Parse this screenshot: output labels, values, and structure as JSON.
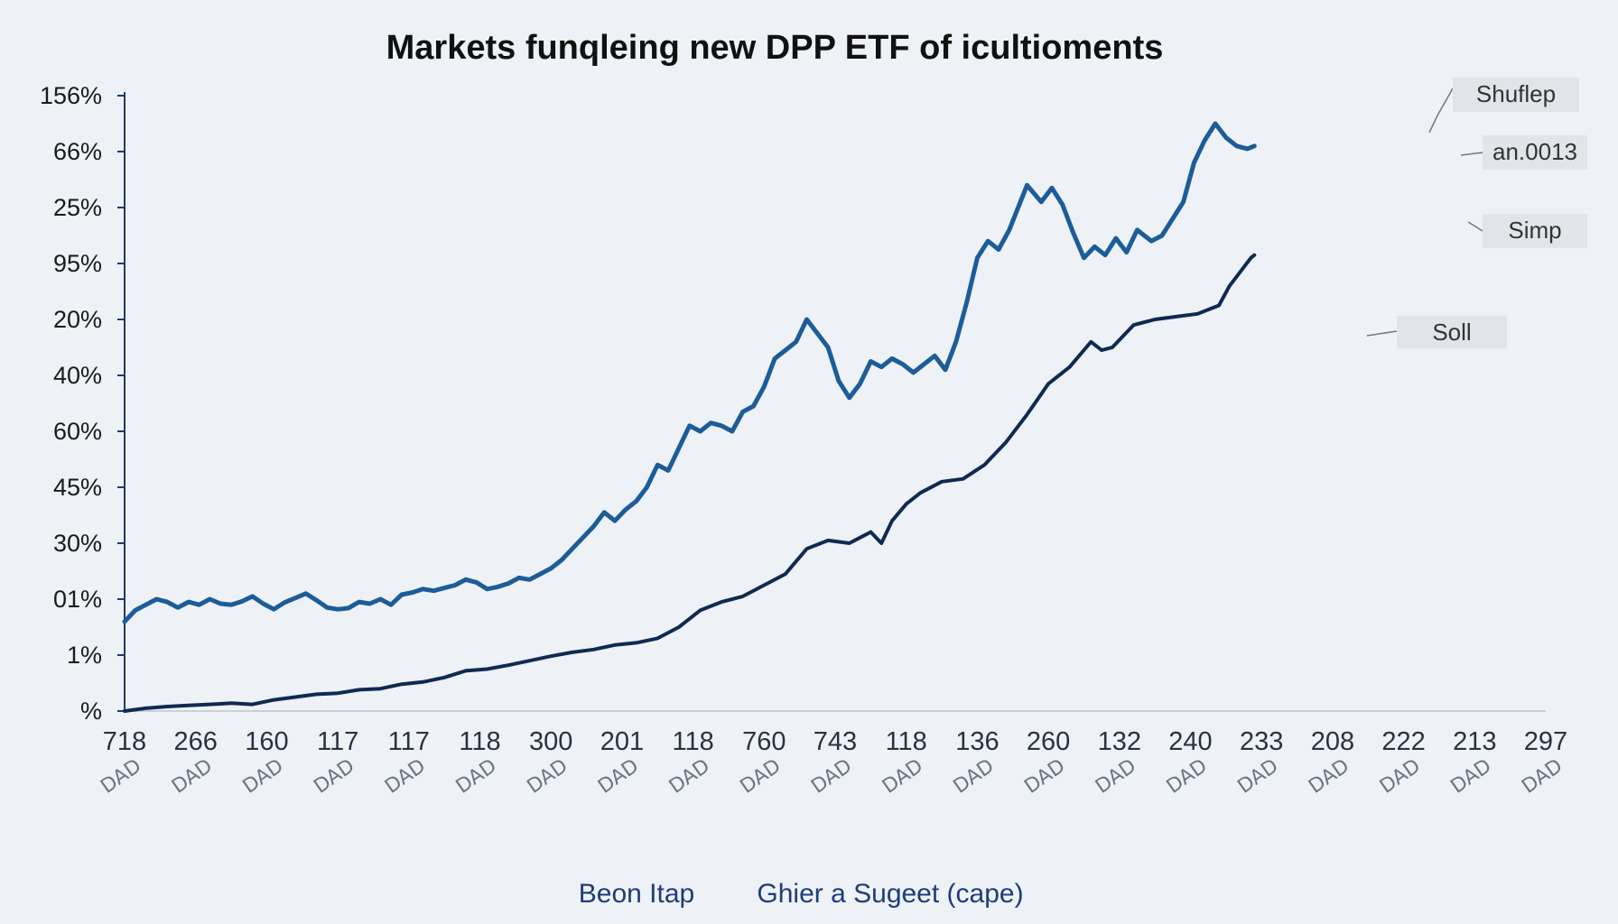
{
  "chart_data": {
    "type": "line",
    "title": "Markets funqleing new DPP ETF of icultioments",
    "xlabel": "",
    "ylabel": "",
    "y_tick_labels": [
      "%",
      "1%",
      "01%",
      "30%",
      "45%",
      "60%",
      "40%",
      "20%",
      "95%",
      "25%",
      "66%",
      "156%"
    ],
    "x_tick_labels": [
      "718",
      "266",
      "160",
      "117",
      "117",
      "118",
      "300",
      "201",
      "118",
      "760",
      "743",
      "118",
      "136",
      "260",
      "132",
      "240",
      "233",
      "208",
      "222",
      "213",
      "297"
    ],
    "x_sub_labels": [
      "DAD",
      "DAD",
      "DAD",
      "DAD",
      "DAD",
      "DAD",
      "DAD",
      "DAD",
      "DAD",
      "DAD",
      "DAD",
      "DAD",
      "DAD",
      "DAD",
      "DAD",
      "DAD",
      "DAD",
      "DAD",
      "DAD",
      "DAD",
      "DAD"
    ],
    "ylim": [
      0,
      11
    ],
    "grid": false,
    "legend_position": "bottom",
    "legend": [
      "Beon Itap",
      "Ghier a Sugeet (cape)"
    ],
    "annotations": [
      "Shuflep",
      "an.0013",
      "Simp",
      "Soll"
    ],
    "colors": {
      "upper": "#1c5c99",
      "lower": "#0f2a52",
      "axis": "#1b3b6b",
      "annot_box": "#e1e5ea"
    },
    "series": [
      {
        "color": "#1c5c99",
        "values": [
          [
            0.0,
            1.6
          ],
          [
            0.15,
            1.8
          ],
          [
            0.3,
            1.9
          ],
          [
            0.45,
            2.0
          ],
          [
            0.6,
            1.95
          ],
          [
            0.75,
            1.85
          ],
          [
            0.9,
            1.95
          ],
          [
            1.05,
            1.9
          ],
          [
            1.2,
            2.0
          ],
          [
            1.35,
            1.92
          ],
          [
            1.5,
            1.9
          ],
          [
            1.65,
            1.96
          ],
          [
            1.8,
            2.05
          ],
          [
            1.95,
            1.92
          ],
          [
            2.1,
            1.82
          ],
          [
            2.25,
            1.94
          ],
          [
            2.4,
            2.02
          ],
          [
            2.55,
            2.1
          ],
          [
            2.7,
            1.98
          ],
          [
            2.85,
            1.85
          ],
          [
            3.0,
            1.82
          ],
          [
            3.15,
            1.84
          ],
          [
            3.3,
            1.95
          ],
          [
            3.45,
            1.92
          ],
          [
            3.6,
            2.0
          ],
          [
            3.75,
            1.9
          ],
          [
            3.9,
            2.08
          ],
          [
            4.05,
            2.12
          ],
          [
            4.2,
            2.18
          ],
          [
            4.35,
            2.15
          ],
          [
            4.5,
            2.2
          ],
          [
            4.65,
            2.25
          ],
          [
            4.8,
            2.35
          ],
          [
            4.95,
            2.3
          ],
          [
            5.1,
            2.18
          ],
          [
            5.25,
            2.22
          ],
          [
            5.4,
            2.28
          ],
          [
            5.55,
            2.38
          ],
          [
            5.7,
            2.35
          ],
          [
            5.85,
            2.45
          ],
          [
            6.0,
            2.55
          ],
          [
            6.15,
            2.7
          ],
          [
            6.3,
            2.9
          ],
          [
            6.45,
            3.1
          ],
          [
            6.6,
            3.3
          ],
          [
            6.75,
            3.55
          ],
          [
            6.9,
            3.4
          ],
          [
            7.05,
            3.6
          ],
          [
            7.2,
            3.75
          ],
          [
            7.35,
            4.0
          ],
          [
            7.5,
            4.4
          ],
          [
            7.65,
            4.3
          ],
          [
            7.8,
            4.7
          ],
          [
            7.95,
            5.1
          ],
          [
            8.1,
            5.0
          ],
          [
            8.25,
            5.15
          ],
          [
            8.4,
            5.1
          ],
          [
            8.55,
            5.0
          ],
          [
            8.7,
            5.35
          ],
          [
            8.85,
            5.45
          ],
          [
            9.0,
            5.8
          ],
          [
            9.15,
            6.3
          ],
          [
            9.3,
            6.45
          ],
          [
            9.45,
            6.6
          ],
          [
            9.6,
            7.0
          ],
          [
            9.75,
            6.75
          ],
          [
            9.9,
            6.5
          ],
          [
            10.05,
            5.9
          ],
          [
            10.2,
            5.6
          ],
          [
            10.35,
            5.85
          ],
          [
            10.5,
            6.25
          ],
          [
            10.65,
            6.15
          ],
          [
            10.8,
            6.3
          ],
          [
            10.95,
            6.2
          ],
          [
            11.1,
            6.05
          ],
          [
            11.25,
            6.2
          ],
          [
            11.4,
            6.35
          ],
          [
            11.55,
            6.1
          ],
          [
            11.7,
            6.6
          ],
          [
            11.85,
            7.3
          ],
          [
            12.0,
            8.1
          ],
          [
            12.15,
            8.4
          ],
          [
            12.3,
            8.25
          ],
          [
            12.45,
            8.6
          ],
          [
            12.7,
            9.4
          ],
          [
            12.9,
            9.1
          ],
          [
            13.05,
            9.35
          ],
          [
            13.2,
            9.05
          ],
          [
            13.35,
            8.55
          ],
          [
            13.5,
            8.1
          ],
          [
            13.65,
            8.3
          ],
          [
            13.8,
            8.15
          ],
          [
            13.95,
            8.45
          ],
          [
            14.1,
            8.2
          ],
          [
            14.25,
            8.6
          ],
          [
            14.45,
            8.4
          ],
          [
            14.6,
            8.5
          ],
          [
            14.75,
            8.8
          ],
          [
            14.9,
            9.1
          ],
          [
            15.05,
            9.8
          ],
          [
            15.2,
            10.2
          ],
          [
            15.35,
            10.5
          ],
          [
            15.5,
            10.25
          ],
          [
            15.65,
            10.1
          ],
          [
            15.8,
            10.05
          ],
          [
            15.9,
            10.1
          ]
        ]
      },
      {
        "color": "#0f2a52",
        "values": [
          [
            0.0,
            0.0
          ],
          [
            0.3,
            0.05
          ],
          [
            0.6,
            0.08
          ],
          [
            0.9,
            0.1
          ],
          [
            1.2,
            0.12
          ],
          [
            1.5,
            0.14
          ],
          [
            1.8,
            0.12
          ],
          [
            2.1,
            0.2
          ],
          [
            2.4,
            0.25
          ],
          [
            2.7,
            0.3
          ],
          [
            3.0,
            0.32
          ],
          [
            3.3,
            0.38
          ],
          [
            3.6,
            0.4
          ],
          [
            3.9,
            0.48
          ],
          [
            4.2,
            0.52
          ],
          [
            4.5,
            0.6
          ],
          [
            4.8,
            0.72
          ],
          [
            5.1,
            0.75
          ],
          [
            5.4,
            0.82
          ],
          [
            5.7,
            0.9
          ],
          [
            6.0,
            0.98
          ],
          [
            6.3,
            1.05
          ],
          [
            6.6,
            1.1
          ],
          [
            6.9,
            1.18
          ],
          [
            7.2,
            1.22
          ],
          [
            7.5,
            1.3
          ],
          [
            7.8,
            1.5
          ],
          [
            8.1,
            1.8
          ],
          [
            8.4,
            1.95
          ],
          [
            8.7,
            2.05
          ],
          [
            9.0,
            2.25
          ],
          [
            9.3,
            2.45
          ],
          [
            9.6,
            2.9
          ],
          [
            9.9,
            3.05
          ],
          [
            10.2,
            3.0
          ],
          [
            10.35,
            3.1
          ],
          [
            10.5,
            3.2
          ],
          [
            10.65,
            3.0
          ],
          [
            10.8,
            3.4
          ],
          [
            11.0,
            3.7
          ],
          [
            11.2,
            3.9
          ],
          [
            11.5,
            4.1
          ],
          [
            11.8,
            4.15
          ],
          [
            12.1,
            4.4
          ],
          [
            12.4,
            4.8
          ],
          [
            12.7,
            5.3
          ],
          [
            13.0,
            5.85
          ],
          [
            13.3,
            6.15
          ],
          [
            13.6,
            6.6
          ],
          [
            13.75,
            6.45
          ],
          [
            13.9,
            6.5
          ],
          [
            14.2,
            6.9
          ],
          [
            14.5,
            7.0
          ],
          [
            14.8,
            7.05
          ],
          [
            15.1,
            7.1
          ],
          [
            15.4,
            7.25
          ],
          [
            15.55,
            7.6
          ],
          [
            15.7,
            7.85
          ],
          [
            15.85,
            8.1
          ],
          [
            15.9,
            8.15
          ]
        ]
      }
    ]
  }
}
